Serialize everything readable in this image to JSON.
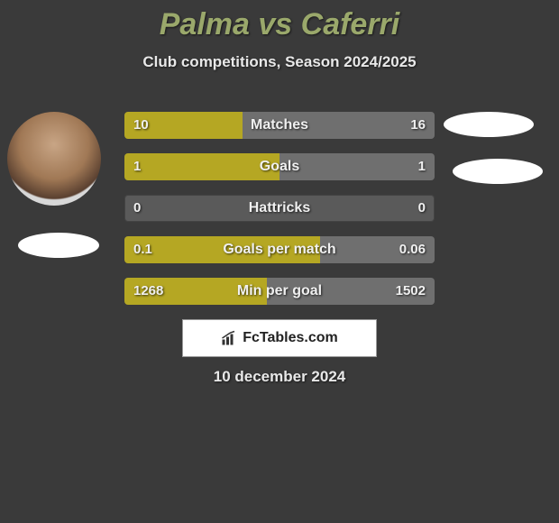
{
  "title": "Palma vs Caferri",
  "subtitle": "Club competitions, Season 2024/2025",
  "date": "10 december 2024",
  "brand": "FcTables.com",
  "colors": {
    "title": "#9aa86b",
    "bar_left": "#b5a723",
    "bar_right": "#6f6f6f",
    "bar_bg": "#5a5a5a",
    "page_bg": "#3a3a3a",
    "text": "#f0f0f0"
  },
  "rows": [
    {
      "label": "Matches",
      "left_val": "10",
      "right_val": "16",
      "left_pct": 38,
      "right_pct": 62
    },
    {
      "label": "Goals",
      "left_val": "1",
      "right_val": "1",
      "left_pct": 50,
      "right_pct": 50
    },
    {
      "label": "Hattricks",
      "left_val": "0",
      "right_val": "0",
      "left_pct": 0,
      "right_pct": 0
    },
    {
      "label": "Goals per match",
      "left_val": "0.1",
      "right_val": "0.06",
      "left_pct": 63,
      "right_pct": 37
    },
    {
      "label": "Min per goal",
      "left_val": "1268",
      "right_val": "1502",
      "left_pct": 46,
      "right_pct": 54
    }
  ]
}
